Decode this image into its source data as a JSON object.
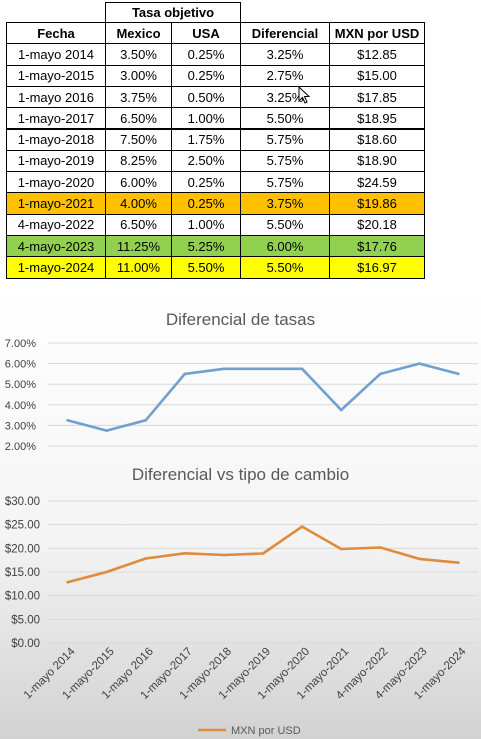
{
  "table": {
    "group_header": "Tasa objetivo",
    "headers": [
      "Fecha",
      "Mexico",
      "USA",
      "Diferencial",
      "MXN por USD"
    ],
    "rows": [
      [
        "1-mayo 2014",
        "3.50%",
        "0.25%",
        "3.25%",
        "$12.85"
      ],
      [
        "1-mayo-2015",
        "3.00%",
        "0.25%",
        "2.75%",
        "$15.00"
      ],
      [
        "1-mayo 2016",
        "3.75%",
        "0.50%",
        "3.25%",
        "$17.85"
      ],
      [
        "1-mayo-2017",
        "6.50%",
        "1.00%",
        "5.50%",
        "$18.95"
      ],
      [
        "1-mayo-2018",
        "7.50%",
        "1.75%",
        "5.75%",
        "$18.60"
      ],
      [
        "1-mayo-2019",
        "8.25%",
        "2.50%",
        "5.75%",
        "$18.90"
      ],
      [
        "1-mayo-2020",
        "6.00%",
        "0.25%",
        "5.75%",
        "$24.59"
      ],
      [
        "1-mayo-2021",
        "4.00%",
        "0.25%",
        "3.75%",
        "$19.86"
      ],
      [
        "4-mayo-2022",
        "6.50%",
        "1.00%",
        "5.50%",
        "$20.18"
      ],
      [
        "4-mayo-2023",
        "11.25%",
        "5.25%",
        "6.00%",
        "$17.76"
      ],
      [
        "1-mayo-2024",
        "11.00%",
        "5.50%",
        "5.50%",
        "$16.97"
      ]
    ],
    "row_highlights": [
      "",
      "",
      "",
      "",
      "",
      "",
      "",
      "#ffc000",
      "",
      "#92d050",
      "#ffff00"
    ]
  },
  "chart_data": [
    {
      "type": "line",
      "title": "Diferencial de tasas",
      "categories": [
        "1-mayo 2014",
        "1-mayo-2015",
        "1-mayo 2016",
        "1-mayo-2017",
        "1-mayo-2018",
        "1-mayo-2019",
        "1-mayo-2020",
        "1-mayo-2021",
        "4-mayo-2022",
        "4-mayo-2023",
        "1-mayo-2024"
      ],
      "series": [
        {
          "values": [
            3.25,
            2.75,
            3.25,
            5.5,
            5.75,
            5.75,
            5.75,
            3.75,
            5.5,
            6.0,
            5.5
          ],
          "color": "#6fa0d0"
        }
      ],
      "ylim": [
        2,
        7
      ],
      "yticks": [
        "2.00%",
        "3.00%",
        "4.00%",
        "5.00%",
        "6.00%",
        "7.00%"
      ],
      "grid": true
    },
    {
      "type": "line",
      "title": "Diferencial vs tipo de cambio",
      "categories": [
        "1-mayo 2014",
        "1-mayo-2015",
        "1-mayo 2016",
        "1-mayo-2017",
        "1-mayo-2018",
        "1-mayo-2019",
        "1-mayo-2020",
        "1-mayo-2021",
        "4-mayo-2022",
        "4-mayo-2023",
        "1-mayo-2024"
      ],
      "series": [
        {
          "name": "MXN por USD",
          "values": [
            12.85,
            15.0,
            17.85,
            18.95,
            18.6,
            18.9,
            24.59,
            19.86,
            20.18,
            17.76,
            16.97
          ],
          "color": "#e08a3c"
        }
      ],
      "ylim": [
        0,
        30
      ],
      "yticks": [
        "$0.00",
        "$5.00",
        "$10.00",
        "$15.00",
        "$20.00",
        "$25.00",
        "$30.00"
      ],
      "legend": "bottom",
      "grid": true
    }
  ]
}
